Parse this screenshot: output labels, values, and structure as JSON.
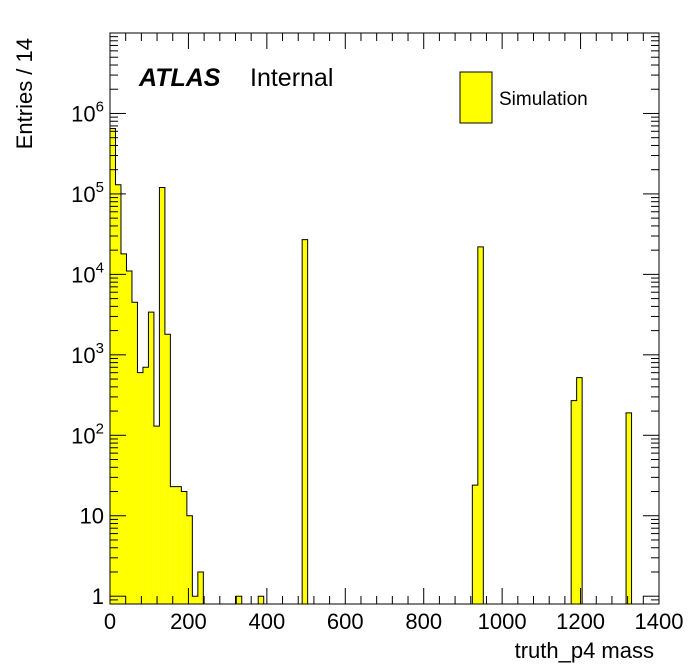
{
  "chart_data": {
    "type": "bar",
    "style": "histogram",
    "title": "",
    "xlabel": "truth_p4 mass",
    "ylabel": "Entries / 14",
    "xlim": [
      0,
      1400
    ],
    "ylim": [
      0.8,
      10000000
    ],
    "yscale": "log",
    "bin_width": 14,
    "x_ticks": [
      0,
      200,
      400,
      600,
      800,
      1000,
      1200,
      1400
    ],
    "x_tick_labels": [
      "0",
      "200",
      "400",
      "600",
      "800",
      "1000",
      "1200",
      "1400"
    ],
    "y_ticks": [
      1,
      10,
      100,
      1000,
      10000,
      100000,
      1000000
    ],
    "y_tick_labels": [
      {
        "base": "1",
        "exp": ""
      },
      {
        "base": "10",
        "exp": ""
      },
      {
        "base": "10",
        "exp": "2"
      },
      {
        "base": "10",
        "exp": "3"
      },
      {
        "base": "10",
        "exp": "4"
      },
      {
        "base": "10",
        "exp": "5"
      },
      {
        "base": "10",
        "exp": "6"
      }
    ],
    "fill_color": "#ffff00",
    "line_color": "#000000",
    "legend_position": "top-right",
    "series": [
      {
        "name": "Simulation",
        "bins": [
          {
            "x0": 0,
            "x1": 14,
            "y": 650000
          },
          {
            "x0": 14,
            "x1": 28,
            "y": 130000
          },
          {
            "x0": 28,
            "x1": 42,
            "y": 18000
          },
          {
            "x0": 42,
            "x1": 56,
            "y": 11000
          },
          {
            "x0": 56,
            "x1": 70,
            "y": 4500
          },
          {
            "x0": 70,
            "x1": 84,
            "y": 600
          },
          {
            "x0": 84,
            "x1": 98,
            "y": 700
          },
          {
            "x0": 98,
            "x1": 112,
            "y": 3400
          },
          {
            "x0": 112,
            "x1": 126,
            "y": 130
          },
          {
            "x0": 126,
            "x1": 140,
            "y": 120000
          },
          {
            "x0": 140,
            "x1": 154,
            "y": 1800
          },
          {
            "x0": 154,
            "x1": 168,
            "y": 23
          },
          {
            "x0": 168,
            "x1": 182,
            "y": 23
          },
          {
            "x0": 182,
            "x1": 196,
            "y": 20
          },
          {
            "x0": 196,
            "x1": 210,
            "y": 10
          },
          {
            "x0": 210,
            "x1": 224,
            "y": 1
          },
          {
            "x0": 224,
            "x1": 238,
            "y": 2
          },
          {
            "x0": 322,
            "x1": 336,
            "y": 1
          },
          {
            "x0": 378,
            "x1": 392,
            "y": 1
          },
          {
            "x0": 490,
            "x1": 504,
            "y": 27000
          },
          {
            "x0": 924,
            "x1": 938,
            "y": 24
          },
          {
            "x0": 938,
            "x1": 952,
            "y": 22000
          },
          {
            "x0": 1176,
            "x1": 1190,
            "y": 270
          },
          {
            "x0": 1190,
            "x1": 1204,
            "y": 520
          },
          {
            "x0": 1316,
            "x1": 1330,
            "y": 190
          }
        ]
      }
    ],
    "annotations": {
      "atlas_label": "ATLAS",
      "status_label": "Internal"
    }
  }
}
